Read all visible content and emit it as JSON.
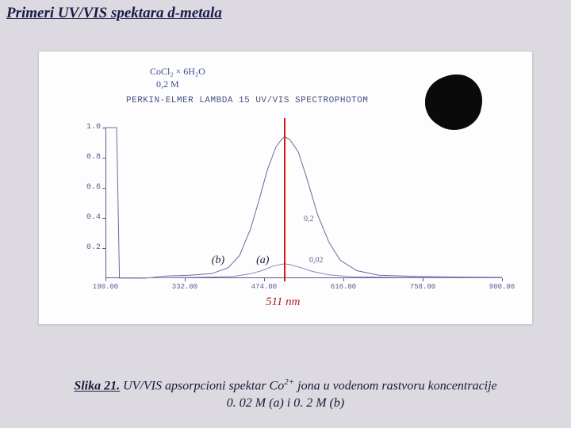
{
  "title": "Primeri UV/VIS spektara d-metala",
  "handwritten": {
    "formula": "CoCl₂ × 6H₂O",
    "conc": "0,2 M",
    "mid1": "0,2",
    "mid2": "0,02"
  },
  "instrument_line": "PERKIN-ELMER LAMBDA 15 UV/VIS SPECTROPHOTOM",
  "chart": {
    "type": "line",
    "background_color": "#fdfdfe",
    "axis_color": "#5a5a90",
    "xlim": [
      190,
      900
    ],
    "ylim": [
      0.0,
      1.0
    ],
    "yticks": [
      0.2,
      0.4,
      0.6,
      0.8,
      1.0
    ],
    "ytick_labels": [
      "0.2",
      "0.4",
      "0.6",
      "0.8",
      "1.0"
    ],
    "xticks": [
      190,
      332,
      474,
      616,
      758,
      900
    ],
    "xtick_labels": [
      "190.00",
      "332.00",
      "474.00",
      "616.00",
      "758.00",
      "900.00"
    ],
    "peak_wavelength_nm": 511,
    "peak_marker_color": "#d41818",
    "curves": {
      "b": {
        "label": "(b)",
        "color": "#6a6a9a",
        "width": 1,
        "points": [
          [
            190,
            1.0
          ],
          [
            200,
            1.0
          ],
          [
            210,
            1.0
          ],
          [
            215,
            0.0
          ],
          [
            260,
            0.0
          ],
          [
            300,
            0.015
          ],
          [
            340,
            0.02
          ],
          [
            380,
            0.03
          ],
          [
            410,
            0.07
          ],
          [
            430,
            0.15
          ],
          [
            450,
            0.33
          ],
          [
            465,
            0.52
          ],
          [
            480,
            0.72
          ],
          [
            495,
            0.87
          ],
          [
            505,
            0.92
          ],
          [
            511,
            0.94
          ],
          [
            520,
            0.92
          ],
          [
            535,
            0.84
          ],
          [
            550,
            0.67
          ],
          [
            570,
            0.42
          ],
          [
            590,
            0.24
          ],
          [
            610,
            0.12
          ],
          [
            640,
            0.05
          ],
          [
            680,
            0.02
          ],
          [
            740,
            0.012
          ],
          [
            820,
            0.008
          ],
          [
            900,
            0.006
          ]
        ]
      },
      "a": {
        "label": "(a)",
        "color": "#8a8ab4",
        "width": 1,
        "points": [
          [
            215,
            0.0
          ],
          [
            300,
            0.003
          ],
          [
            380,
            0.008
          ],
          [
            420,
            0.012
          ],
          [
            450,
            0.03
          ],
          [
            470,
            0.05
          ],
          [
            490,
            0.08
          ],
          [
            505,
            0.092
          ],
          [
            511,
            0.095
          ],
          [
            520,
            0.09
          ],
          [
            540,
            0.07
          ],
          [
            560,
            0.045
          ],
          [
            590,
            0.022
          ],
          [
            630,
            0.01
          ],
          [
            700,
            0.006
          ],
          [
            800,
            0.004
          ],
          [
            900,
            0.003
          ]
        ]
      }
    },
    "curve_label_positions": {
      "b": [
        380,
        0.16
      ],
      "a": [
        460,
        0.16
      ]
    },
    "hw_mid_positions": {
      "mid1": [
        545,
        0.42
      ],
      "mid2": [
        555,
        0.15
      ]
    },
    "peak_label_text": "511 nm",
    "tick_fontsize": 10,
    "label_fontsize": 14
  },
  "caption": {
    "slika": "Slika 21.",
    "line1_prefix": " UV/VIS apsorpcioni spektar Co",
    "sup": "2+",
    "line1_suffix": " jona u vodenom rastvoru koncentracije",
    "line2": "0. 02 M (a) i 0. 2 M  (b)"
  }
}
